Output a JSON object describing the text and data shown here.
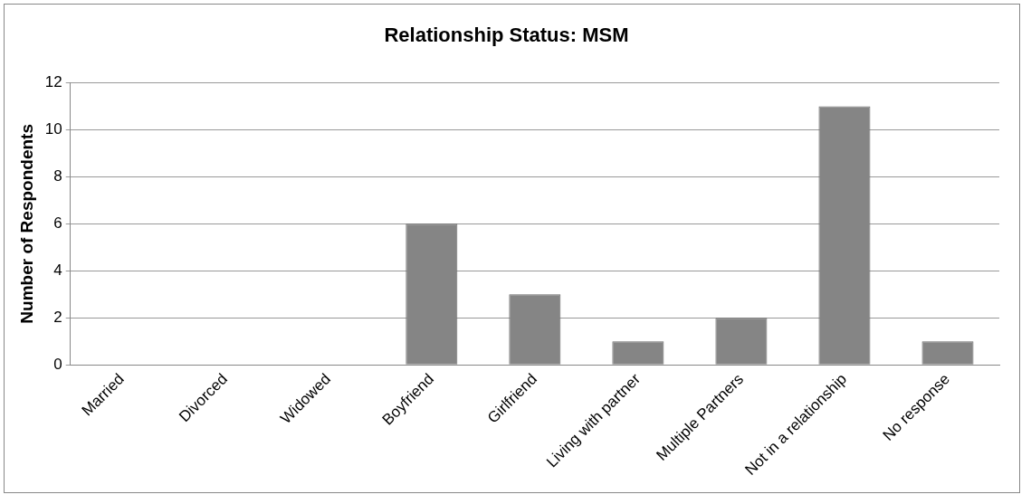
{
  "chart_data": {
    "type": "bar",
    "title": "Relationship Status: MSM",
    "ylabel": "Number of Respondents",
    "categories": [
      "Married",
      "Divorced",
      "Widowed",
      "Boyfriend",
      "Girlfriend",
      "Living with partner",
      "Multiple Partners",
      "Not in a relationship",
      "No response"
    ],
    "values": [
      0,
      0,
      0,
      6,
      3,
      1,
      2,
      11,
      1
    ],
    "color": "#858585",
    "ylim": [
      0,
      12
    ],
    "yticks": [
      0,
      2,
      4,
      6,
      8,
      10,
      12
    ],
    "grid": "y",
    "legend": false
  }
}
